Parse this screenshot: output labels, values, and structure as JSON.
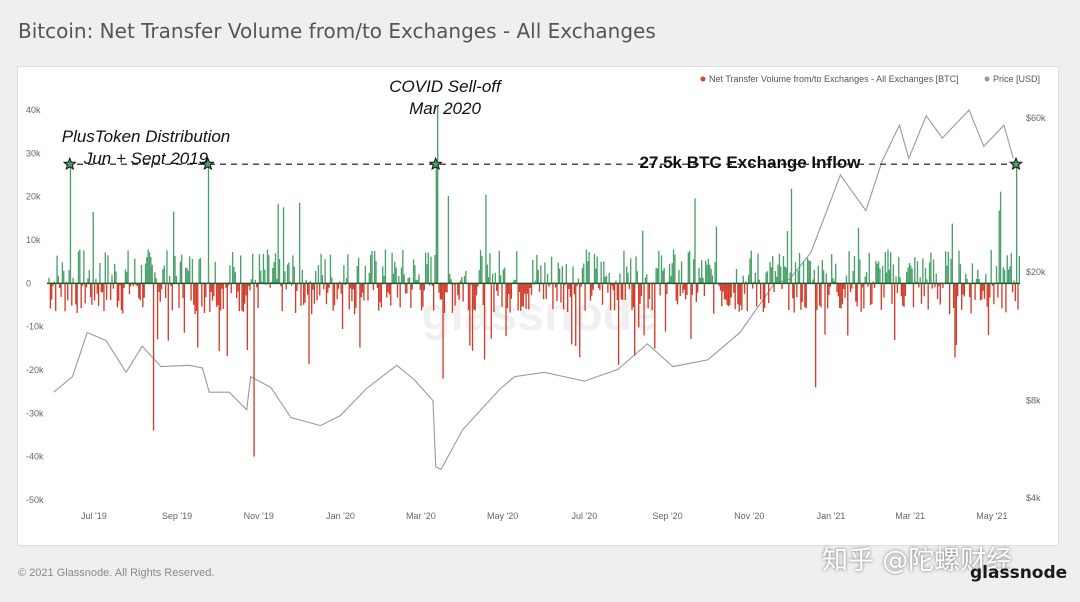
{
  "page": {
    "title": "Bitcoin: Net Transfer Volume from/to Exchanges - All Exchanges",
    "copyright": "© 2021 Glassnode. All Rights Reserved.",
    "watermark": "知乎 @陀螺财经",
    "logo": "glassnode"
  },
  "chart_data": {
    "type": "bar",
    "title": "Bitcoin: Net Transfer Volume from/to Exchanges - All Exchanges",
    "xlabel": "",
    "ylabel": "",
    "ylim": [
      -50000,
      40000
    ],
    "y2_scale": "log",
    "y2_ticks": [
      "$4k",
      "$8k",
      "$20k",
      "$60k"
    ],
    "y_ticks": [
      "40k",
      "30k",
      "20k",
      "10k",
      "0",
      "-10k",
      "-20k",
      "-30k",
      "-40k",
      "-50k"
    ],
    "x_ticks": [
      "Jul '19",
      "Sep '19",
      "Nov '19",
      "Jan '20",
      "Mar '20",
      "May '20",
      "Jul '20",
      "Sep '20",
      "Nov '20",
      "Jan '21",
      "Mar '21",
      "May '21"
    ],
    "legend_position": "top-right",
    "legend": [
      {
        "name": "Net Transfer Volume from/to Exchanges - All Exchanges [BTC]",
        "color": "#d64333"
      },
      {
        "name": "Price [USD]",
        "color": "#999999"
      }
    ],
    "colors": {
      "positive": "#4aa06a",
      "negative": "#d23c2a",
      "price": "#9a9a9a"
    },
    "highlight_level": 27500,
    "annotations": [
      {
        "text": "PlusToken Distribution",
        "line2": "Jun + Sept 2019"
      },
      {
        "text": "COVID Sell-off",
        "line2": "Mar 2020"
      },
      {
        "text": "27.5k BTC Exchange Inflow"
      }
    ],
    "peaks": [
      {
        "date": "2019-06-13",
        "value": 27500
      },
      {
        "date": "2019-09-24",
        "value": 27500
      },
      {
        "date": "2020-03-12",
        "value": 27500
      },
      {
        "date": "2020-03-13",
        "value": 41000
      },
      {
        "date": "2021-05-19",
        "value": 27500
      }
    ],
    "notable_negatives": [
      {
        "date": "2019-08-14",
        "value": -34000
      },
      {
        "date": "2019-10-28",
        "value": -40000
      },
      {
        "date": "2020-03-17",
        "value": -22000
      },
      {
        "date": "2020-12-20",
        "value": -24000
      }
    ],
    "price_series": [
      [
        "2019-06-01",
        8500
      ],
      [
        "2019-06-15",
        9500
      ],
      [
        "2019-06-26",
        13000
      ],
      [
        "2019-07-10",
        12300
      ],
      [
        "2019-07-25",
        9800
      ],
      [
        "2019-08-06",
        11800
      ],
      [
        "2019-08-20",
        10200
      ],
      [
        "2019-09-10",
        10300
      ],
      [
        "2019-09-20",
        10100
      ],
      [
        "2019-09-25",
        8500
      ],
      [
        "2019-10-10",
        8500
      ],
      [
        "2019-10-23",
        7500
      ],
      [
        "2019-10-26",
        9500
      ],
      [
        "2019-11-10",
        8800
      ],
      [
        "2019-11-25",
        7100
      ],
      [
        "2019-12-17",
        6700
      ],
      [
        "2020-01-01",
        7200
      ],
      [
        "2020-01-20",
        8700
      ],
      [
        "2020-02-12",
        10300
      ],
      [
        "2020-02-25",
        9300
      ],
      [
        "2020-03-10",
        8000
      ],
      [
        "2020-03-12",
        5000
      ],
      [
        "2020-03-16",
        4900
      ],
      [
        "2020-04-01",
        6500
      ],
      [
        "2020-04-29",
        8700
      ],
      [
        "2020-05-10",
        9500
      ],
      [
        "2020-06-01",
        9800
      ],
      [
        "2020-07-01",
        9200
      ],
      [
        "2020-07-26",
        10000
      ],
      [
        "2020-08-17",
        12000
      ],
      [
        "2020-09-05",
        10200
      ],
      [
        "2020-10-01",
        10700
      ],
      [
        "2020-10-25",
        13000
      ],
      [
        "2020-11-20",
        18500
      ],
      [
        "2020-12-01",
        19000
      ],
      [
        "2020-12-17",
        23000
      ],
      [
        "2021-01-08",
        40000
      ],
      [
        "2021-01-27",
        31000
      ],
      [
        "2021-02-08",
        44000
      ],
      [
        "2021-02-21",
        57000
      ],
      [
        "2021-02-28",
        45000
      ],
      [
        "2021-03-13",
        61000
      ],
      [
        "2021-03-25",
        52000
      ],
      [
        "2021-04-14",
        63500
      ],
      [
        "2021-04-25",
        49000
      ],
      [
        "2021-05-10",
        57000
      ],
      [
        "2021-05-17",
        45000
      ]
    ]
  }
}
